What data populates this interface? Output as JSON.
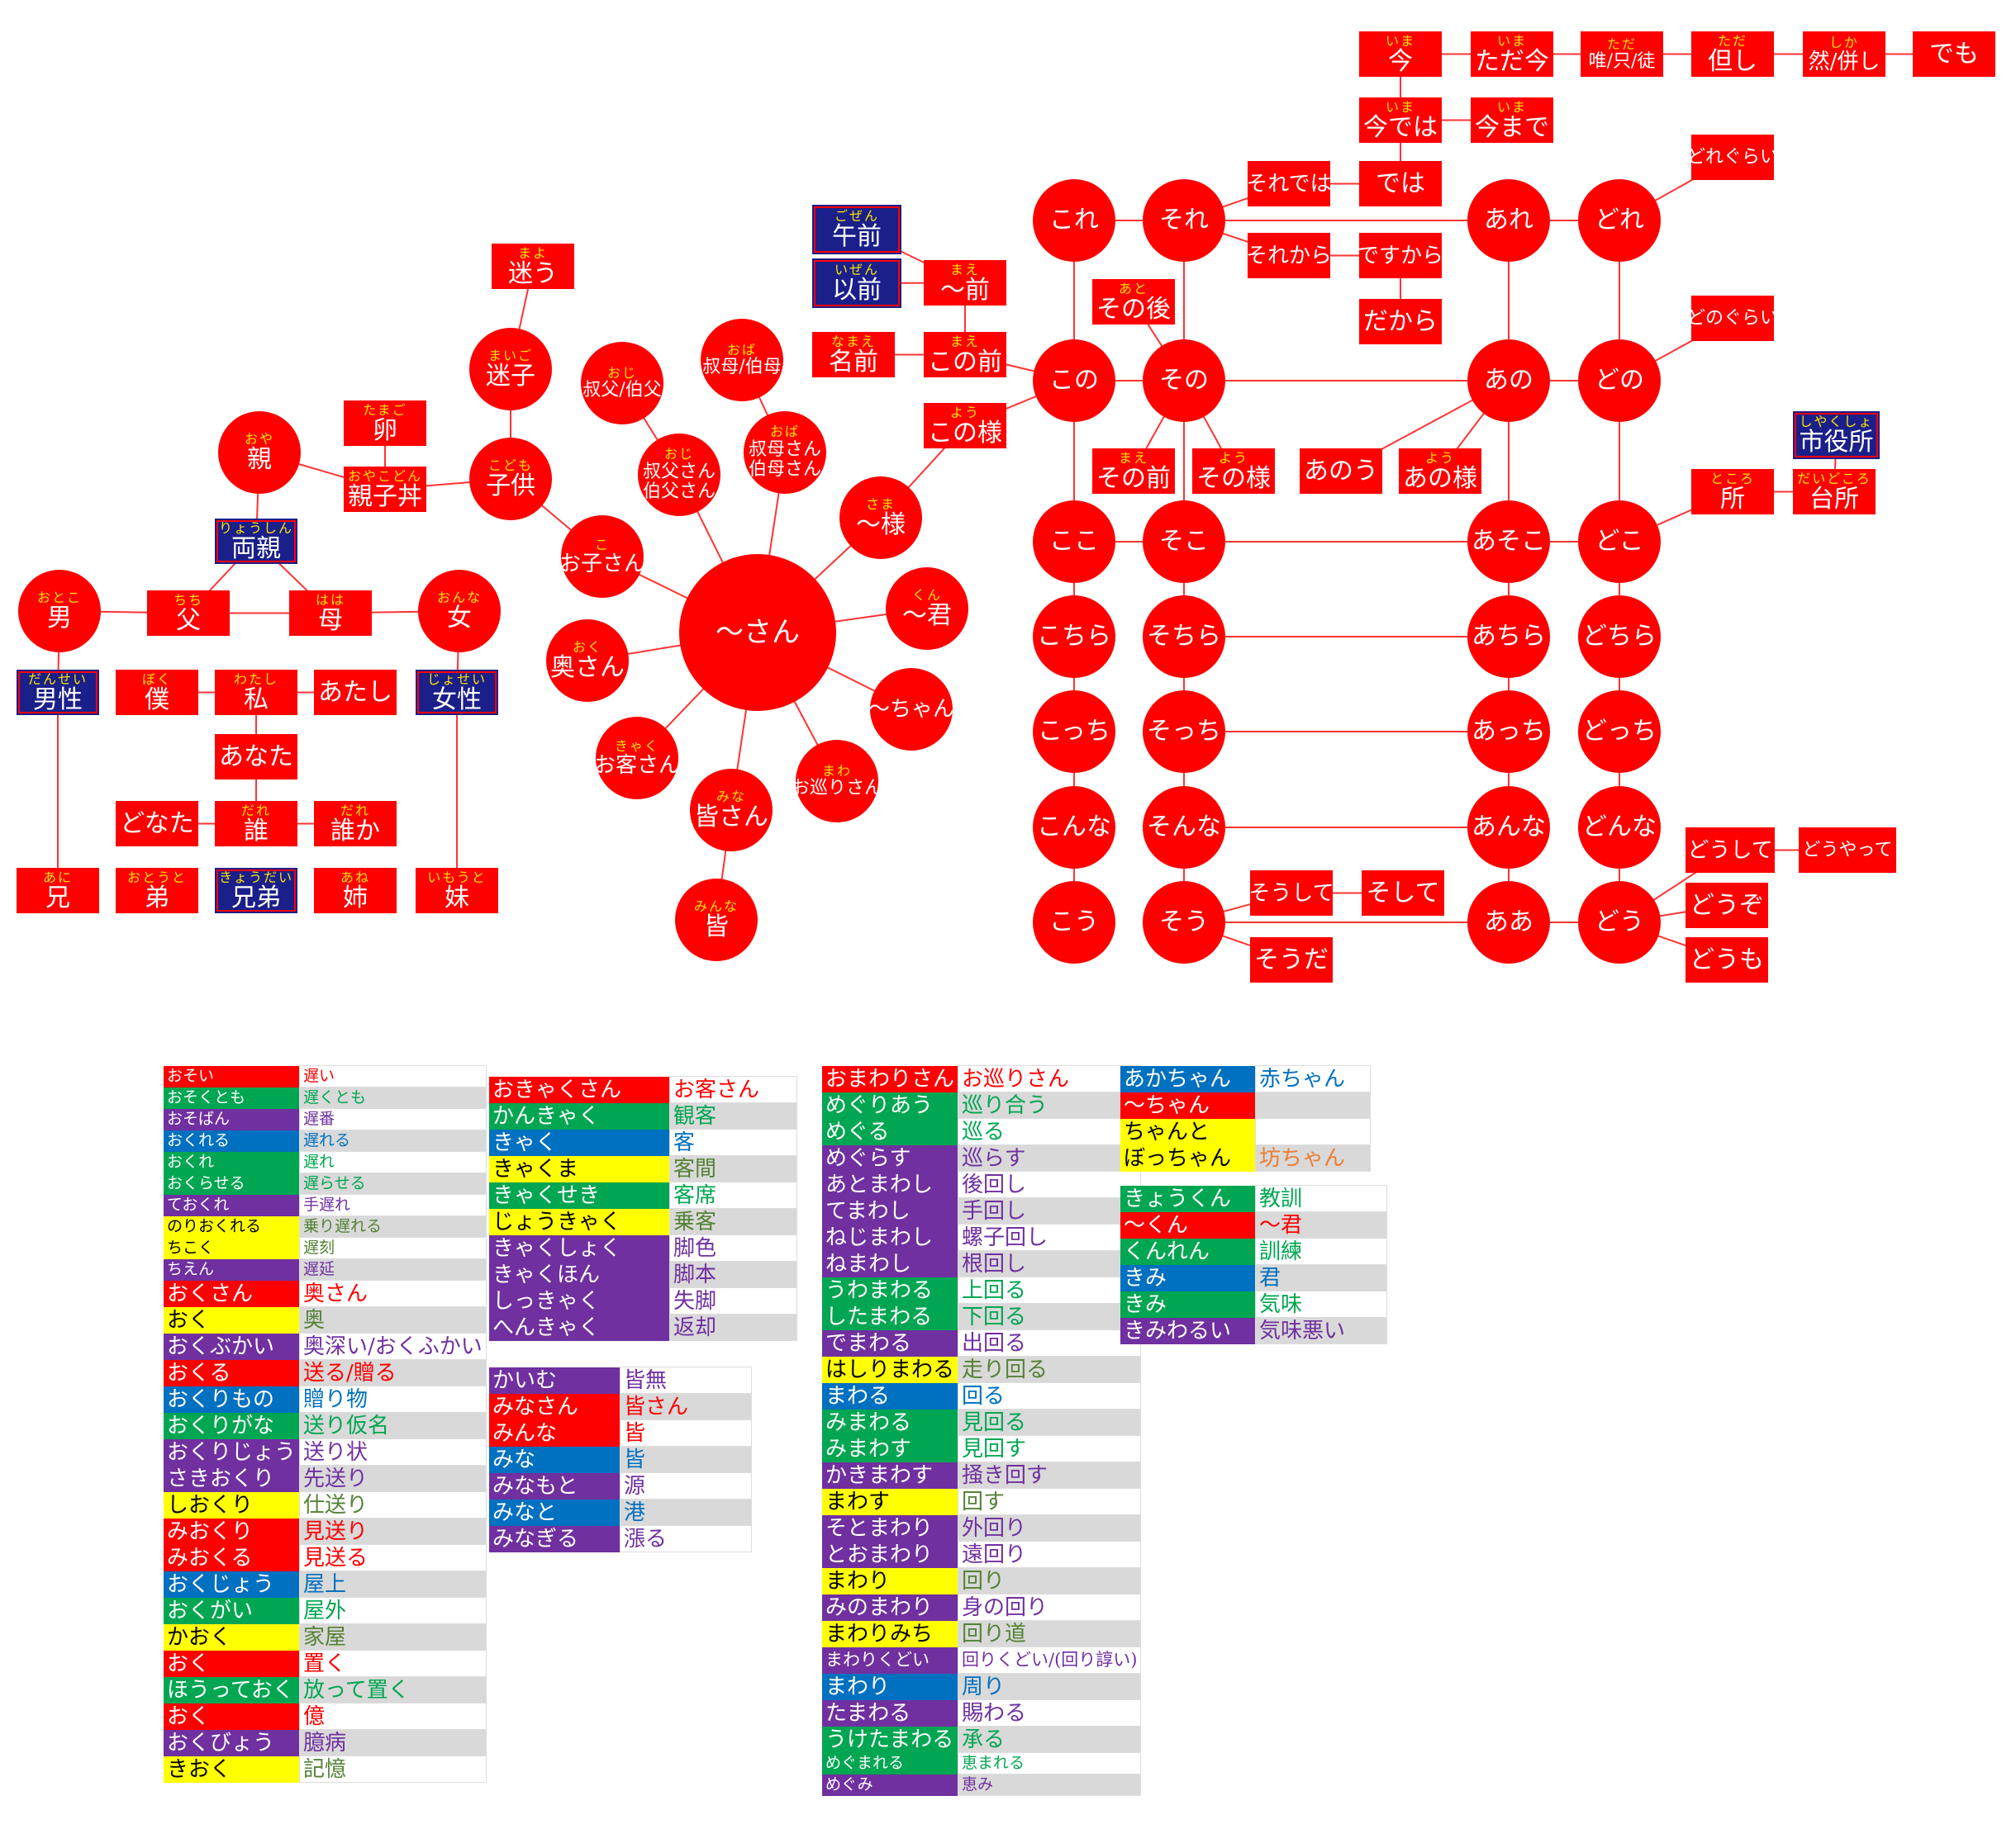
{
  "colors": {
    "red": "#ff0000",
    "green": "#00a651",
    "purple": "#7030a0",
    "blue": "#0070c0",
    "yellow": "#ffff00",
    "navy": "#1a1f8a",
    "gray": "#d9d9d9",
    "orange": "#ed7d31",
    "darkgreen": "#548235",
    "white": "#ffffff"
  },
  "nodes": [
    {
      "id": "ima",
      "r": "いま",
      "t": "今"
    },
    {
      "id": "tadaima",
      "r": "いま",
      "t": "ただ今"
    },
    {
      "id": "tada",
      "r": "ただ",
      "t": "唯/只/徒"
    },
    {
      "id": "tadashi",
      "r": "ただ",
      "t": "但し"
    },
    {
      "id": "shika",
      "r": "しか",
      "t": "然/併し"
    },
    {
      "id": "demo",
      "r": "",
      "t": "でも"
    },
    {
      "id": "imadewa",
      "r": "いま",
      "t": "今では"
    },
    {
      "id": "imamade",
      "r": "いま",
      "t": "今まで"
    },
    {
      "id": "soredewa",
      "r": "",
      "t": "それでは"
    },
    {
      "id": "dewa",
      "r": "",
      "t": "では"
    },
    {
      "id": "dore_gurai",
      "r": "",
      "t": "どれぐらい"
    },
    {
      "id": "kore",
      "r": "",
      "t": "これ"
    },
    {
      "id": "sore",
      "r": "",
      "t": "それ"
    },
    {
      "id": "are",
      "r": "",
      "t": "あれ"
    },
    {
      "id": "dore",
      "r": "",
      "t": "どれ"
    },
    {
      "id": "sorekara",
      "r": "",
      "t": "それから"
    },
    {
      "id": "desukara",
      "r": "",
      "t": "ですから"
    },
    {
      "id": "dakara",
      "r": "",
      "t": "だから"
    },
    {
      "id": "gozen",
      "r": "ごぜん",
      "t": "午前"
    },
    {
      "id": "izen",
      "r": "いぜん",
      "t": "以前"
    },
    {
      "id": "mae",
      "r": "まえ",
      "t": "～前"
    },
    {
      "id": "namae",
      "r": "なまえ",
      "t": "名前"
    },
    {
      "id": "konomae",
      "r": "まえ",
      "t": "この前"
    },
    {
      "id": "sonogo",
      "r": "あと",
      "t": "その後"
    },
    {
      "id": "donogurai",
      "r": "",
      "t": "どのぐらい"
    },
    {
      "id": "kono",
      "r": "",
      "t": "この"
    },
    {
      "id": "sono",
      "r": "",
      "t": "その"
    },
    {
      "id": "ano",
      "r": "",
      "t": "あの"
    },
    {
      "id": "dono",
      "r": "",
      "t": "どの"
    },
    {
      "id": "konoyou",
      "r": "よう",
      "t": "この様"
    },
    {
      "id": "sonomae",
      "r": "まえ",
      "t": "その前"
    },
    {
      "id": "sonoyou",
      "r": "よう",
      "t": "その様"
    },
    {
      "id": "anou",
      "r": "",
      "t": "あのう"
    },
    {
      "id": "anoyou",
      "r": "よう",
      "t": "あの様"
    },
    {
      "id": "shiyakusho",
      "r": "しやくしょ",
      "t": "市役所"
    },
    {
      "id": "tokoro",
      "r": "ところ",
      "t": "所"
    },
    {
      "id": "daidokoro",
      "r": "だいどころ",
      "t": "台所"
    },
    {
      "id": "mayou",
      "r": "まよ",
      "t": "迷う"
    },
    {
      "id": "maigo",
      "r": "まいご",
      "t": "迷子"
    },
    {
      "id": "oji1",
      "r": "おじ",
      "t": "叔父/伯父"
    },
    {
      "id": "oba1",
      "r": "おば",
      "t": "叔母/伯母"
    },
    {
      "id": "oya",
      "r": "おや",
      "t": "親"
    },
    {
      "id": "tamago",
      "r": "たまご",
      "t": "卵"
    },
    {
      "id": "oyakodon",
      "r": "おやこどん",
      "t": "親子丼"
    },
    {
      "id": "kodomo",
      "r": "こども",
      "t": "子供"
    },
    {
      "id": "ojisan",
      "r": "おじ",
      "t": "叔父さん\n伯父さん"
    },
    {
      "id": "obasan",
      "r": "おば",
      "t": "叔母さん\n伯母さん"
    },
    {
      "id": "sama",
      "r": "さま",
      "t": "～様"
    },
    {
      "id": "ryoushin",
      "r": "りょうしん",
      "t": "両親"
    },
    {
      "id": "okosan",
      "r": "こ",
      "t": "お子さん"
    },
    {
      "id": "san",
      "r": "",
      "t": "～さん"
    },
    {
      "id": "kun",
      "r": "くん",
      "t": "～君"
    },
    {
      "id": "otoko",
      "r": "おとこ",
      "t": "男"
    },
    {
      "id": "chichi",
      "r": "ちち",
      "t": "父"
    },
    {
      "id": "haha",
      "r": "はは",
      "t": "母"
    },
    {
      "id": "onna",
      "r": "おんな",
      "t": "女"
    },
    {
      "id": "okusan",
      "r": "おく",
      "t": "奥さん"
    },
    {
      "id": "chan",
      "r": "",
      "t": "～ちゃん"
    },
    {
      "id": "dansei",
      "r": "だんせい",
      "t": "男性"
    },
    {
      "id": "boku",
      "r": "ぼく",
      "t": "僕"
    },
    {
      "id": "watashi",
      "r": "わたし",
      "t": "私"
    },
    {
      "id": "atashi",
      "r": "",
      "t": "あたし"
    },
    {
      "id": "josei",
      "r": "じょせい",
      "t": "女性"
    },
    {
      "id": "anata",
      "r": "",
      "t": "あなた"
    },
    {
      "id": "okyakusan",
      "r": "きゃく",
      "t": "お客さん"
    },
    {
      "id": "omawarisan",
      "r": "まわ",
      "t": "お巡りさん"
    },
    {
      "id": "minasan",
      "r": "みな",
      "t": "皆さん"
    },
    {
      "id": "donata",
      "r": "",
      "t": "どなた"
    },
    {
      "id": "dare",
      "r": "だれ",
      "t": "誰"
    },
    {
      "id": "dareka",
      "r": "だれ",
      "t": "誰か"
    },
    {
      "id": "minna",
      "r": "みんな",
      "t": "皆"
    },
    {
      "id": "ani",
      "r": "あに",
      "t": "兄"
    },
    {
      "id": "otouto",
      "r": "おとうと",
      "t": "弟"
    },
    {
      "id": "kyoudai",
      "r": "きょうだい",
      "t": "兄弟"
    },
    {
      "id": "ane",
      "r": "あね",
      "t": "姉"
    },
    {
      "id": "imouto",
      "r": "いもうと",
      "t": "妹"
    },
    {
      "id": "koko",
      "r": "",
      "t": "ここ"
    },
    {
      "id": "soko",
      "r": "",
      "t": "そこ"
    },
    {
      "id": "asoko",
      "r": "",
      "t": "あそこ"
    },
    {
      "id": "doko",
      "r": "",
      "t": "どこ"
    },
    {
      "id": "kochira",
      "r": "",
      "t": "こちら"
    },
    {
      "id": "sochira",
      "r": "",
      "t": "そちら"
    },
    {
      "id": "achira",
      "r": "",
      "t": "あちら"
    },
    {
      "id": "dochira",
      "r": "",
      "t": "どちら"
    },
    {
      "id": "kotchi",
      "r": "",
      "t": "こっち"
    },
    {
      "id": "sotchi",
      "r": "",
      "t": "そっち"
    },
    {
      "id": "atchi",
      "r": "",
      "t": "あっち"
    },
    {
      "id": "dotchi",
      "r": "",
      "t": "どっち"
    },
    {
      "id": "konna",
      "r": "",
      "t": "こんな"
    },
    {
      "id": "sonna",
      "r": "",
      "t": "そんな"
    },
    {
      "id": "anna",
      "r": "",
      "t": "あんな"
    },
    {
      "id": "donna",
      "r": "",
      "t": "どんな"
    },
    {
      "id": "doushite",
      "r": "",
      "t": "どうして"
    },
    {
      "id": "douyatte",
      "r": "",
      "t": "どうやって"
    },
    {
      "id": "soushite",
      "r": "",
      "t": "そうして"
    },
    {
      "id": "soshite",
      "r": "",
      "t": "そして"
    },
    {
      "id": "douzo",
      "r": "",
      "t": "どうぞ"
    },
    {
      "id": "kou",
      "r": "",
      "t": "こう"
    },
    {
      "id": "sou",
      "r": "",
      "t": "そう"
    },
    {
      "id": "aa",
      "r": "",
      "t": "ああ"
    },
    {
      "id": "dou",
      "r": "",
      "t": "どう"
    },
    {
      "id": "souda",
      "r": "",
      "t": "そうだ"
    },
    {
      "id": "doumo",
      "r": "",
      "t": "どうも"
    }
  ],
  "tables": [
    {
      "id": "t1",
      "rows": [
        {
          "k": "おそい",
          "v": "遅い",
          "kc": "red",
          "vc": "red",
          "s": "s"
        },
        {
          "k": "おそくとも",
          "v": "遅くとも",
          "kc": "green",
          "vc": "green",
          "s": "s"
        },
        {
          "k": "おそばん",
          "v": "遅番",
          "kc": "purple",
          "vc": "purple",
          "s": "s"
        },
        {
          "k": "おくれる",
          "v": "遅れる",
          "kc": "blue",
          "vc": "blue",
          "s": "s"
        },
        {
          "k": "おくれ",
          "v": "遅れ",
          "kc": "green",
          "vc": "green",
          "s": "s"
        },
        {
          "k": "おくらせる",
          "v": "遅らせる",
          "kc": "green",
          "vc": "green",
          "s": "s"
        },
        {
          "k": "ておくれ",
          "v": "手遅れ",
          "kc": "purple",
          "vc": "purple",
          "s": "s"
        },
        {
          "k": "のりおくれる",
          "v": "乗り遅れる",
          "kc": "yellow",
          "vc": "darkgreen",
          "s": "s"
        },
        {
          "k": "ちこく",
          "v": "遅刻",
          "kc": "yellow",
          "vc": "darkgreen",
          "s": "s"
        },
        {
          "k": "ちえん",
          "v": "遅延",
          "kc": "purple",
          "vc": "purple",
          "s": "s"
        },
        {
          "k": "おくさん",
          "v": "奥さん",
          "kc": "red",
          "vc": "red",
          "s": "l"
        },
        {
          "k": "おく",
          "v": "奥",
          "kc": "yellow",
          "vc": "darkgreen",
          "s": "l"
        },
        {
          "k": "おくぶかい",
          "v": "奥深い/おくふかい",
          "kc": "purple",
          "vc": "purple",
          "s": "l"
        },
        {
          "k": "おくる",
          "v": "送る/贈る",
          "kc": "red",
          "vc": "red",
          "s": "l"
        },
        {
          "k": "おくりもの",
          "v": "贈り物",
          "kc": "blue",
          "vc": "blue",
          "s": "l"
        },
        {
          "k": "おくりがな",
          "v": "送り仮名",
          "kc": "green",
          "vc": "green",
          "s": "l"
        },
        {
          "k": "おくりじょう",
          "v": "送り状",
          "kc": "purple",
          "vc": "purple",
          "s": "l"
        },
        {
          "k": "さきおくり",
          "v": "先送り",
          "kc": "purple",
          "vc": "purple",
          "s": "l"
        },
        {
          "k": "しおくり",
          "v": "仕送り",
          "kc": "yellow",
          "vc": "darkgreen",
          "s": "l"
        },
        {
          "k": "みおくり",
          "v": "見送り",
          "kc": "red",
          "vc": "red",
          "s": "l"
        },
        {
          "k": "みおくる",
          "v": "見送る",
          "kc": "red",
          "vc": "red",
          "s": "l"
        },
        {
          "k": "おくじょう",
          "v": "屋上",
          "kc": "blue",
          "vc": "blue",
          "s": "l"
        },
        {
          "k": "おくがい",
          "v": "屋外",
          "kc": "green",
          "vc": "green",
          "s": "l"
        },
        {
          "k": "かおく",
          "v": "家屋",
          "kc": "yellow",
          "vc": "darkgreen",
          "s": "l"
        },
        {
          "k": "おく",
          "v": "置く",
          "kc": "red",
          "vc": "red",
          "s": "l"
        },
        {
          "k": "ほうっておく",
          "v": "放って置く",
          "kc": "green",
          "vc": "green",
          "s": "l"
        },
        {
          "k": "おく",
          "v": "億",
          "kc": "red",
          "vc": "red",
          "s": "l"
        },
        {
          "k": "おくびょう",
          "v": "臆病",
          "kc": "purple",
          "vc": "purple",
          "s": "l"
        },
        {
          "k": "きおく",
          "v": "記憶",
          "kc": "yellow",
          "vc": "darkgreen",
          "s": "l"
        }
      ]
    },
    {
      "id": "t2",
      "rows": [
        {
          "k": "おきゃくさん",
          "v": "お客さん",
          "kc": "red",
          "vc": "red",
          "s": "l"
        },
        {
          "k": "かんきゃく",
          "v": "観客",
          "kc": "green",
          "vc": "green",
          "s": "l"
        },
        {
          "k": "きゃく",
          "v": "客",
          "kc": "blue",
          "vc": "blue",
          "s": "l"
        },
        {
          "k": "きゃくま",
          "v": "客間",
          "kc": "yellow",
          "vc": "darkgreen",
          "s": "l"
        },
        {
          "k": "きゃくせき",
          "v": "客席",
          "kc": "green",
          "vc": "green",
          "s": "l"
        },
        {
          "k": "じょうきゃく",
          "v": "乗客",
          "kc": "yellow",
          "vc": "darkgreen",
          "s": "l"
        },
        {
          "k": "きゃくしょく",
          "v": "脚色",
          "kc": "purple",
          "vc": "purple",
          "s": "l"
        },
        {
          "k": "きゃくほん",
          "v": "脚本",
          "kc": "purple",
          "vc": "purple",
          "s": "l"
        },
        {
          "k": "しっきゃく",
          "v": "失脚",
          "kc": "purple",
          "vc": "purple",
          "s": "l"
        },
        {
          "k": "へんきゃく",
          "v": "返却",
          "kc": "purple",
          "vc": "purple",
          "s": "l"
        }
      ]
    },
    {
      "id": "t3",
      "rows": [
        {
          "k": "かいむ",
          "v": "皆無",
          "kc": "purple",
          "vc": "purple",
          "s": "l"
        },
        {
          "k": "みなさん",
          "v": "皆さん",
          "kc": "red",
          "vc": "red",
          "s": "l"
        },
        {
          "k": "みんな",
          "v": "皆",
          "kc": "red",
          "vc": "red",
          "s": "l"
        },
        {
          "k": "みな",
          "v": "皆",
          "kc": "blue",
          "vc": "blue",
          "s": "l"
        },
        {
          "k": "みなもと",
          "v": "源",
          "kc": "purple",
          "vc": "purple",
          "s": "l"
        },
        {
          "k": "みなと",
          "v": "港",
          "kc": "blue",
          "vc": "blue",
          "s": "l"
        },
        {
          "k": "みなぎる",
          "v": "漲る",
          "kc": "purple",
          "vc": "purple",
          "s": "l"
        }
      ]
    },
    {
      "id": "t4",
      "rows": [
        {
          "k": "おまわりさん",
          "v": "お巡りさん",
          "kc": "red",
          "vc": "red",
          "s": "l"
        },
        {
          "k": "めぐりあう",
          "v": "巡り合う",
          "kc": "green",
          "vc": "green",
          "s": "l"
        },
        {
          "k": "めぐる",
          "v": "巡る",
          "kc": "green",
          "vc": "green",
          "s": "l"
        },
        {
          "k": "めぐらす",
          "v": "巡らす",
          "kc": "purple",
          "vc": "purple",
          "s": "l"
        },
        {
          "k": "あとまわし",
          "v": "後回し",
          "kc": "purple",
          "vc": "purple",
          "s": "l"
        },
        {
          "k": "てまわし",
          "v": "手回し",
          "kc": "purple",
          "vc": "purple",
          "s": "l"
        },
        {
          "k": "ねじまわし",
          "v": "螺子回し",
          "kc": "purple",
          "vc": "purple",
          "s": "l"
        },
        {
          "k": "ねまわし",
          "v": "根回し",
          "kc": "purple",
          "vc": "purple",
          "s": "l"
        },
        {
          "k": "うわまわる",
          "v": "上回る",
          "kc": "green",
          "vc": "green",
          "s": "l"
        },
        {
          "k": "したまわる",
          "v": "下回る",
          "kc": "green",
          "vc": "green",
          "s": "l"
        },
        {
          "k": "でまわる",
          "v": "出回る",
          "kc": "purple",
          "vc": "purple",
          "s": "l"
        },
        {
          "k": "はしりまわる",
          "v": "走り回る",
          "kc": "yellow",
          "vc": "darkgreen",
          "s": "l"
        },
        {
          "k": "まわる",
          "v": "回る",
          "kc": "blue",
          "vc": "blue",
          "s": "l"
        },
        {
          "k": "みまわる",
          "v": "見回る",
          "kc": "green",
          "vc": "green",
          "s": "l"
        },
        {
          "k": "みまわす",
          "v": "見回す",
          "kc": "green",
          "vc": "green",
          "s": "l"
        },
        {
          "k": "かきまわす",
          "v": "掻き回す",
          "kc": "purple",
          "vc": "purple",
          "s": "l"
        },
        {
          "k": "まわす",
          "v": "回す",
          "kc": "yellow",
          "vc": "darkgreen",
          "s": "l"
        },
        {
          "k": "そとまわり",
          "v": "外回り",
          "kc": "purple",
          "vc": "purple",
          "s": "l"
        },
        {
          "k": "とおまわり",
          "v": "遠回り",
          "kc": "purple",
          "vc": "purple",
          "s": "l"
        },
        {
          "k": "まわり",
          "v": "回り",
          "kc": "yellow",
          "vc": "darkgreen",
          "s": "l"
        },
        {
          "k": "みのまわり",
          "v": "身の回り",
          "kc": "purple",
          "vc": "purple",
          "s": "l"
        },
        {
          "k": "まわりみち",
          "v": "回り道",
          "kc": "yellow",
          "vc": "darkgreen",
          "s": "l"
        },
        {
          "k": "まわりくどい",
          "v": "回りくどい/(回り諄い)",
          "kc": "purple",
          "vc": "purple",
          "s": "m"
        },
        {
          "k": "まわり",
          "v": "周り",
          "kc": "blue",
          "vc": "blue",
          "s": "l"
        },
        {
          "k": "たまわる",
          "v": "賜わる",
          "kc": "purple",
          "vc": "purple",
          "s": "l"
        },
        {
          "k": "うけたまわる",
          "v": "承る",
          "kc": "green",
          "vc": "green",
          "s": "l"
        },
        {
          "k": "めぐまれる",
          "v": "恵まれる",
          "kc": "green",
          "vc": "green",
          "s": "s"
        },
        {
          "k": "めぐみ",
          "v": "恵み",
          "kc": "purple",
          "vc": "purple",
          "s": "s"
        }
      ]
    },
    {
      "id": "t5",
      "rows": [
        {
          "k": "あかちゃん",
          "v": "赤ちゃん",
          "kc": "blue",
          "vc": "blue",
          "s": "l"
        },
        {
          "k": "～ちゃん",
          "v": "",
          "kc": "red",
          "vc": "red",
          "s": "l"
        },
        {
          "k": "ちゃんと",
          "v": "",
          "kc": "yellow",
          "vc": "darkgreen",
          "s": "l"
        },
        {
          "k": "ぼっちゃん",
          "v": "坊ちゃん",
          "kc": "yellow",
          "vc": "orange",
          "s": "l"
        }
      ]
    },
    {
      "id": "t6",
      "rows": [
        {
          "k": "きょうくん",
          "v": "教訓",
          "kc": "green",
          "vc": "green",
          "s": "l"
        },
        {
          "k": "～くん",
          "v": "～君",
          "kc": "red",
          "vc": "red",
          "s": "l"
        },
        {
          "k": "くんれん",
          "v": "訓練",
          "kc": "green",
          "vc": "green",
          "s": "l"
        },
        {
          "k": "きみ",
          "v": "君",
          "kc": "blue",
          "vc": "blue",
          "s": "l"
        },
        {
          "k": "きみ",
          "v": "気味",
          "kc": "green",
          "vc": "green",
          "s": "l"
        },
        {
          "k": "きみわるい",
          "v": "気味悪い",
          "kc": "purple",
          "vc": "purple",
          "s": "l"
        }
      ]
    }
  ]
}
